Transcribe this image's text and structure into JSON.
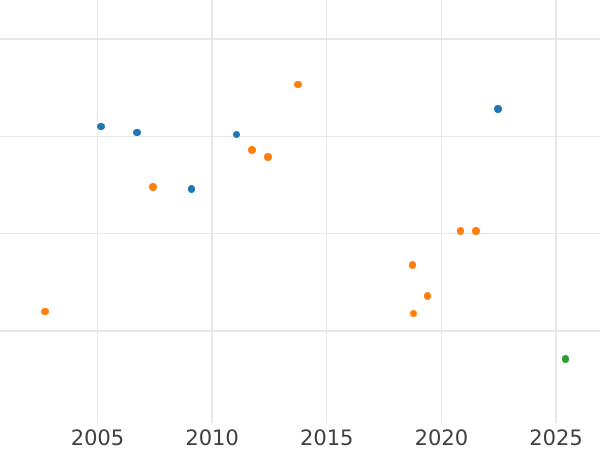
{
  "chart_data": {
    "type": "scatter",
    "title": "",
    "xlabel": "",
    "ylabel": "",
    "x_tick_labels": [
      "2005",
      "2010",
      "2015",
      "2020",
      "2025"
    ],
    "x_ticks": [
      2005,
      2010,
      2015,
      2020,
      2025
    ],
    "xlim": [
      2000.75,
      2026.92
    ],
    "ylim": [
      0.055,
      4.4
    ],
    "y_gridlines": [
      1,
      2,
      3,
      4
    ],
    "y_axis_note": "no y-axis tick labels visible; y values expressed in gridline units (1 unit per horizontal gridline, bottom gridline = 1)",
    "grid": true,
    "legend_position": "none",
    "marker_diameter_px": 7.6,
    "series": [
      {
        "name": "blue-series",
        "color": "#1f77b4",
        "points": [
          {
            "x": 2005.15,
            "y": 3.1
          },
          {
            "x": 2006.72,
            "y": 3.04
          },
          {
            "x": 2009.1,
            "y": 2.46
          },
          {
            "x": 2011.06,
            "y": 3.02
          },
          {
            "x": 2022.48,
            "y": 3.28
          }
        ]
      },
      {
        "name": "orange-series",
        "color": "#ff7f0e",
        "points": [
          {
            "x": 2002.72,
            "y": 1.2
          },
          {
            "x": 2007.42,
            "y": 2.48
          },
          {
            "x": 2011.73,
            "y": 2.86
          },
          {
            "x": 2012.45,
            "y": 2.79
          },
          {
            "x": 2013.75,
            "y": 3.53
          },
          {
            "x": 2018.74,
            "y": 1.68
          },
          {
            "x": 2018.78,
            "y": 1.18
          },
          {
            "x": 2019.39,
            "y": 1.36
          },
          {
            "x": 2020.84,
            "y": 2.03
          },
          {
            "x": 2021.5,
            "y": 2.03
          }
        ]
      },
      {
        "name": "green-series",
        "color": "#2ca02c",
        "points": [
          {
            "x": 2025.42,
            "y": 0.71
          }
        ]
      }
    ],
    "colors": {
      "background": "#ffffff",
      "grid": "#e8e8e8",
      "tick_label": "#404040",
      "blue": "#1f77b4",
      "orange": "#ff7f0e",
      "green": "#2ca02c"
    }
  }
}
